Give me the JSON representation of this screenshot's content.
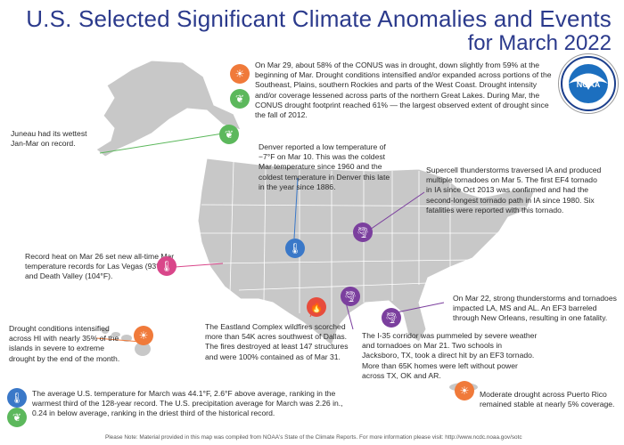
{
  "title_line1": "U.S. Selected Significant Climate Anomalies and Events",
  "title_line2": "for March 2022",
  "annotations": {
    "drought": "On Mar 29, about 58% of the CONUS was in drought, down slightly from 59% at the beginning of Mar. Drought conditions intensified and/or expanded across portions of the Southeast, Plains, southern Rockies and parts of the West Coast. Drought intensity and/or coverage lessened across parts of the northern Great Lakes. During Mar, the CONUS drought footprint reached 61% — the largest observed extent of drought since the fall of 2012.",
    "juneau": "Juneau had its wettest Jan-Mar on record.",
    "denver": "Denver reported a low temperature of −7°F on Mar 10. This was the coldest Mar temperature since 1960 and the coldest temperature in Denver this late in the year since 1886.",
    "iowa": "Supercell thunderstorms traversed IA and produced multiple tornadoes on Mar 5. The first EF4 tornado in IA since Oct 2013 was confirmed and had the second-longest tornado path in IA since 1980. Six fatalities were reported with this tornado.",
    "heat": "Record heat on Mar 26 set new all-time Mar temperature records for Las Vegas (93°F) and Death Valley (104°F).",
    "new_orleans": "On Mar 22, strong thunderstorms and tornadoes impacted LA, MS and AL. An EF3 barreled through New Orleans, resulting in one fatality.",
    "hawaii": "Drought conditions intensified across HI with nearly 35% of the islands in severe to extreme drought by the end of the month.",
    "eastland": "The Eastland Complex wildfires scorched more than 54K acres southwest of Dallas. The fires destroyed at least 147 structures and were 100% contained as of Mar 31.",
    "i35": "The I-35 corridor was pummeled by severe weather and tornadoes on Mar 21. Two schools in Jacksboro, TX, took a direct hit by an EF3 tornado. More than 65K homes were left without power across TX, OK and AR.",
    "temp_precip_1": "The average U.S. temperature for March was 44.1°F, 2.6°F above average, ranking in the",
    "temp_precip_2": "warmest third of the 128-year record. The U.S. precipitation average for March was 2.26 in.,",
    "temp_precip_3": "0.24 in below average, ranking in the driest third of the historical record.",
    "puerto_rico": "Moderate drought across Puerto Rico remained stable at nearly 5% coverage."
  },
  "footnote": "Please Note: Material provided in this map was compiled from NOAA's State of the Climate Reports. For more information please visit: http://www.ncdc.noaa.gov/sotc",
  "logo_text": "NOAA",
  "colors": {
    "title": "#2b3a8c",
    "map_fill": "#c8c8c8",
    "map_stroke": "#ffffff"
  },
  "icons": {
    "drought": "sun-icon",
    "wet": "raindrops-icon",
    "warm": "thermometer-icon",
    "cold": "thermometer-icon",
    "tornado": "tornado-icon",
    "fire": "fire-icon"
  }
}
